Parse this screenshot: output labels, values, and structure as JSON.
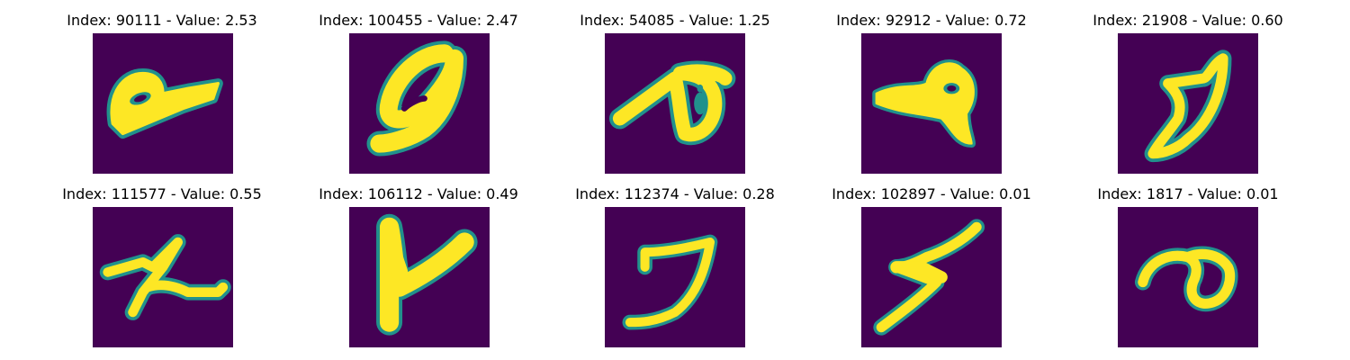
{
  "palette": {
    "background": "#440154",
    "edge": "#21918c",
    "stroke": "#fde725"
  },
  "panels": [
    {
      "title": "Index: 90111 - Value: 2.53"
    },
    {
      "title": "Index: 100455 - Value: 2.47"
    },
    {
      "title": "Index: 54085 - Value: 1.25"
    },
    {
      "title": "Index: 92912 - Value: 0.72"
    },
    {
      "title": "Index: 21908 - Value: 0.60"
    },
    {
      "title": "Index: 111577 - Value: 0.55"
    },
    {
      "title": "Index: 106112 - Value: 0.49"
    },
    {
      "title": "Index: 112374 - Value: 0.28"
    },
    {
      "title": "Index: 102897 - Value: 0.01"
    },
    {
      "title": "Index: 1817 - Value: 0.01"
    }
  ]
}
